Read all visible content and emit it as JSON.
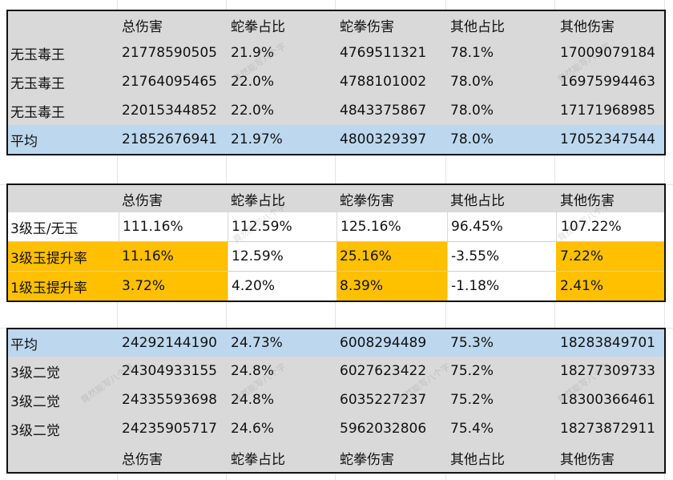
{
  "table1": {
    "header": [
      "",
      "总伤害",
      "蛇拳占比",
      "蛇拳伤害",
      "其他占比",
      "其他伤害"
    ],
    "rows": [
      [
        "无玉毒王",
        "21778590505",
        "21.9%",
        "4769511321",
        "78.1%",
        "17009079184"
      ],
      [
        "无玉毒王",
        "21764095465",
        "22.0%",
        "4788101002",
        "78.0%",
        "16975994463"
      ],
      [
        "无玉毒王",
        "22015344852",
        "22.0%",
        "4843375867",
        "78.0%",
        "17171968985"
      ]
    ],
    "avg": [
      "平均",
      "21852676941",
      "21.97%",
      "4800329397",
      "78.0%",
      "17052347544"
    ]
  },
  "table2": {
    "header": [
      "",
      "总伤害",
      "蛇拳占比",
      "蛇拳伤害",
      "其他占比",
      "其他伤害"
    ],
    "ratio": [
      "3级玉/无玉",
      "111.16%",
      "112.59%",
      "125.16%",
      "96.45%",
      "107.22%"
    ],
    "lvl3": [
      "3级玉提升率",
      "11.16%",
      "12.59%",
      "25.16%",
      "-3.55%",
      "7.22%"
    ],
    "lvl1": [
      "1级玉提升率",
      "3.72%",
      "4.20%",
      "8.39%",
      "-1.18%",
      "2.41%"
    ]
  },
  "table3": {
    "avg": [
      "平均",
      "24292144190",
      "24.73%",
      "6008294489",
      "75.3%",
      "18283849701"
    ],
    "rows": [
      [
        "3级二觉",
        "24304933155",
        "24.8%",
        "6027623422",
        "75.2%",
        "18277309733"
      ],
      [
        "3级二觉",
        "24335593698",
        "24.8%",
        "6035227237",
        "75.2%",
        "18300366461"
      ],
      [
        "3级二觉",
        "24235905717",
        "24.6%",
        "5962032806",
        "75.4%",
        "18273872911"
      ]
    ],
    "footer": [
      "",
      "总伤害",
      "蛇拳占比",
      "蛇拳伤害",
      "其他占比",
      "其他伤害"
    ]
  },
  "watermark_text": "竟然能写八个字",
  "colors": {
    "gray": "#d9d9d9",
    "blue": "#bdd7ee",
    "orange": "#ffc000",
    "border": "#111111"
  }
}
